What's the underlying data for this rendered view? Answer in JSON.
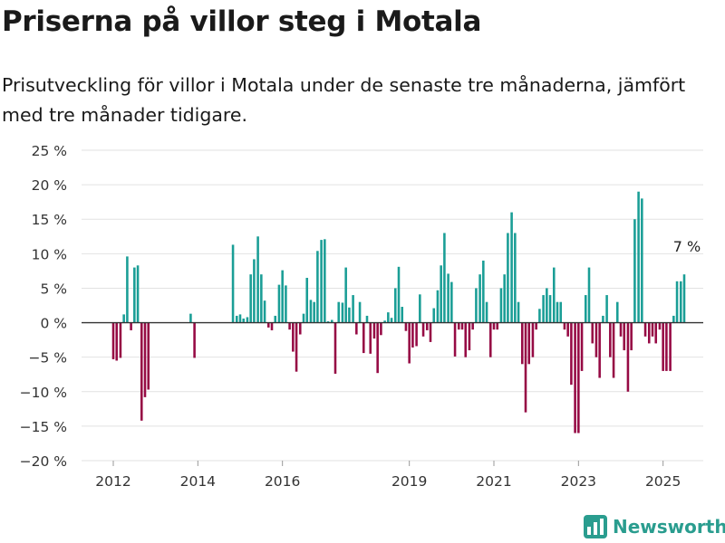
{
  "title": "Priserna på villor steg i Motala",
  "subtitle": "Prisutveckling för villor i Motala under de senaste tre månaderna, jämfört med tre månader tidigare.",
  "brand": "Newsworthy",
  "colors": {
    "positive": "#1a9e96",
    "negative": "#960a44",
    "grid": "#e2e2e2",
    "zero": "#333333",
    "brand": "#2a9d8f"
  },
  "chart_data": {
    "type": "bar",
    "ylim": [
      -20,
      25
    ],
    "yticks": [
      -20,
      -15,
      -10,
      -5,
      0,
      5,
      10,
      15,
      20,
      25
    ],
    "ytick_labels": [
      "−20 %",
      "−15 %",
      "−10 %",
      "−5 %",
      "0 %",
      "5 %",
      "10 %",
      "15 %",
      "20 %",
      "25 %"
    ],
    "xlim": [
      2011.25,
      2025.95
    ],
    "xticks": [
      2012,
      2014,
      2016,
      2019,
      2021,
      2023,
      2025
    ],
    "xtick_labels": [
      "2012",
      "2014",
      "2016",
      "2019",
      "2021",
      "2023",
      "2025"
    ],
    "annotation": {
      "text": "7 %",
      "x": 2025.52,
      "y": 7
    },
    "x": [
      2012.0,
      2012.08,
      2012.17,
      2012.25,
      2012.33,
      2012.42,
      2012.5,
      2012.58,
      2012.67,
      2012.75,
      2012.83,
      2013.83,
      2013.92,
      2014.83,
      2014.92,
      2015.0,
      2015.08,
      2015.17,
      2015.25,
      2015.33,
      2015.42,
      2015.5,
      2015.58,
      2015.67,
      2015.75,
      2015.83,
      2015.92,
      2016.0,
      2016.08,
      2016.17,
      2016.25,
      2016.33,
      2016.42,
      2016.5,
      2016.58,
      2016.67,
      2016.75,
      2016.83,
      2016.92,
      2017.0,
      2017.08,
      2017.17,
      2017.25,
      2017.33,
      2017.42,
      2017.5,
      2017.58,
      2017.67,
      2017.75,
      2017.83,
      2017.92,
      2018.0,
      2018.08,
      2018.17,
      2018.25,
      2018.33,
      2018.42,
      2018.5,
      2018.58,
      2018.67,
      2018.75,
      2018.83,
      2018.92,
      2019.0,
      2019.08,
      2019.17,
      2019.25,
      2019.33,
      2019.42,
      2019.5,
      2019.58,
      2019.67,
      2019.75,
      2019.83,
      2019.92,
      2020.0,
      2020.08,
      2020.17,
      2020.25,
      2020.33,
      2020.42,
      2020.5,
      2020.58,
      2020.67,
      2020.75,
      2020.83,
      2020.92,
      2021.0,
      2021.08,
      2021.17,
      2021.25,
      2021.33,
      2021.42,
      2021.5,
      2021.58,
      2021.67,
      2021.75,
      2021.83,
      2021.92,
      2022.0,
      2022.08,
      2022.17,
      2022.25,
      2022.33,
      2022.42,
      2022.5,
      2022.58,
      2022.67,
      2022.75,
      2022.83,
      2022.92,
      2023.0,
      2023.08,
      2023.17,
      2023.25,
      2023.33,
      2023.42,
      2023.5,
      2023.58,
      2023.67,
      2023.75,
      2023.83,
      2023.92,
      2024.0,
      2024.08,
      2024.17,
      2024.25,
      2024.33,
      2024.42,
      2024.5,
      2024.58,
      2024.67,
      2024.75,
      2024.83,
      2024.92,
      2025.0,
      2025.08,
      2025.17,
      2025.25,
      2025.33,
      2025.42,
      2025.5
    ],
    "values": [
      -5.3,
      -5.5,
      -5.1,
      1.2,
      9.6,
      -1.1,
      8.0,
      8.3,
      -14.2,
      -10.8,
      -9.7,
      1.3,
      -5.1,
      11.3,
      1.0,
      1.2,
      0.6,
      0.8,
      7.0,
      9.2,
      12.5,
      7.0,
      3.2,
      -0.7,
      -1.1,
      1.0,
      5.5,
      7.6,
      5.4,
      -1.0,
      -4.2,
      -7.1,
      -1.7,
      1.3,
      6.5,
      3.3,
      3.0,
      10.4,
      12.0,
      12.1,
      0.2,
      0.4,
      -7.4,
      3.0,
      2.9,
      8.0,
      2.2,
      4.0,
      -1.7,
      3.0,
      -4.4,
      1.0,
      -4.5,
      -2.3,
      -7.3,
      -1.8,
      0.3,
      1.5,
      0.7,
      5.0,
      8.1,
      2.3,
      -1.2,
      -5.9,
      -3.6,
      -3.4,
      4.1,
      -2.0,
      -1.1,
      -2.8,
      2.1,
      4.7,
      8.3,
      13.0,
      7.1,
      5.9,
      -4.9,
      -1.0,
      -1.0,
      -5.0,
      -4.0,
      -1.0,
      5.0,
      7.0,
      9.0,
      3.0,
      -5.0,
      -1.0,
      -1.0,
      5.0,
      7.0,
      13.0,
      16.0,
      13.0,
      3.0,
      -6.0,
      -13.0,
      -6.0,
      -5.0,
      -1.0,
      2.0,
      4.0,
      5.0,
      4.0,
      8.0,
      3.0,
      3.0,
      -1.0,
      -2.0,
      -9.0,
      -16.0,
      -16.0,
      -7.0,
      4.0,
      8.0,
      -3.0,
      -5.0,
      -8.0,
      1.0,
      4.0,
      -5.0,
      -8.0,
      3.0,
      -2.0,
      -4.0,
      -10.0,
      -4.0,
      15.0,
      19.0,
      18.0,
      -2.0,
      -3.0,
      -2.0,
      -3.0,
      -1.0,
      -7.0,
      -7.0,
      -7.0,
      1.0,
      6.0,
      6.0,
      7.0
    ]
  }
}
